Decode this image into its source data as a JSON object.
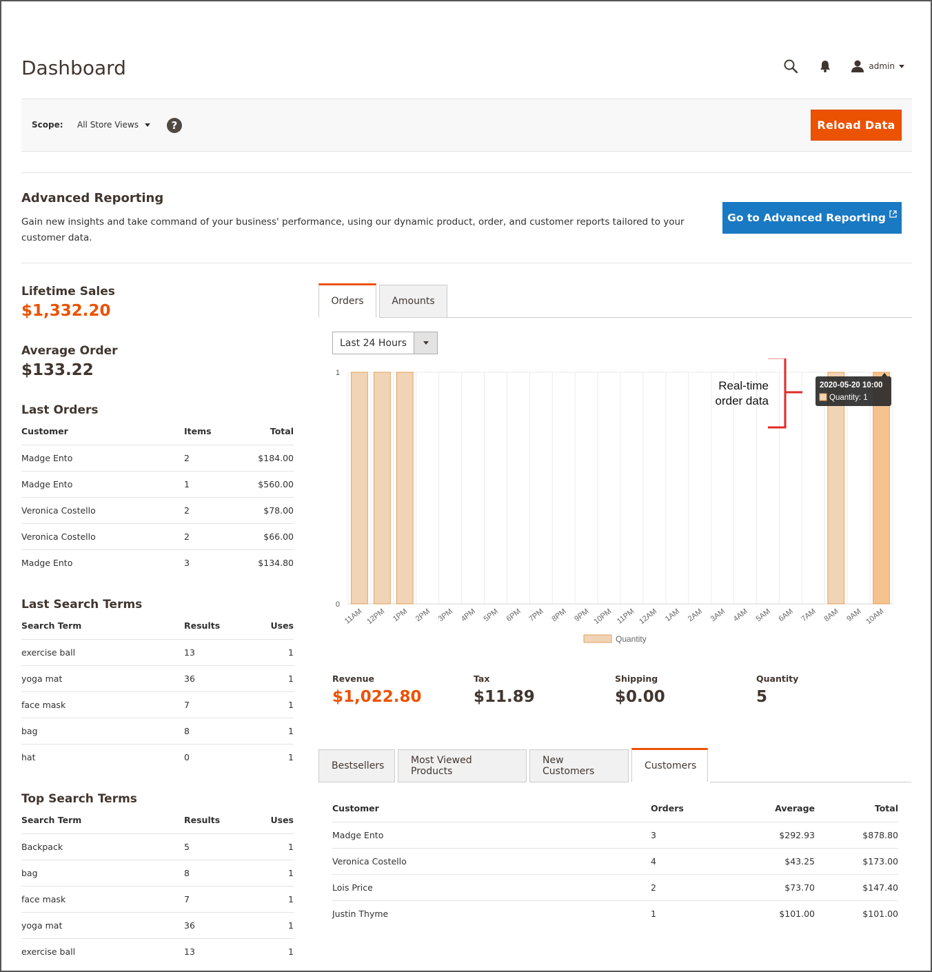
{
  "header": {
    "title": "Dashboard",
    "user": "admin"
  },
  "scope": {
    "label": "Scope:",
    "value": "All Store Views",
    "help": "?",
    "reload_label": "Reload Data"
  },
  "advanced_reporting": {
    "title": "Advanced Reporting",
    "description": "Gain new insights and take command of your business' performance, using our dynamic product, order, and customer reports tailored to your customer data.",
    "button_label": "Go to Advanced Reporting"
  },
  "lifetime_sales": {
    "label": "Lifetime Sales",
    "value": "$1,332.20"
  },
  "average_order": {
    "label": "Average Order",
    "value": "$133.22"
  },
  "last_orders": {
    "title": "Last Orders",
    "columns": [
      "Customer",
      "Items",
      "Total"
    ],
    "rows": [
      [
        "Madge Ento",
        "2",
        "$184.00"
      ],
      [
        "Madge Ento",
        "1",
        "$560.00"
      ],
      [
        "Veronica Costello",
        "2",
        "$78.00"
      ],
      [
        "Veronica Costello",
        "2",
        "$66.00"
      ],
      [
        "Madge Ento",
        "3",
        "$134.80"
      ]
    ]
  },
  "last_search_terms": {
    "title": "Last Search Terms",
    "columns": [
      "Search Term",
      "Results",
      "Uses"
    ],
    "rows": [
      [
        "exercise ball",
        "13",
        "1"
      ],
      [
        "yoga mat",
        "36",
        "1"
      ],
      [
        "face mask",
        "7",
        "1"
      ],
      [
        "bag",
        "8",
        "1"
      ],
      [
        "hat",
        "0",
        "1"
      ]
    ]
  },
  "top_search_terms": {
    "title": "Top Search Terms",
    "columns": [
      "Search Term",
      "Results",
      "Uses"
    ],
    "rows": [
      [
        "Backpack",
        "5",
        "1"
      ],
      [
        "bag",
        "8",
        "1"
      ],
      [
        "face mask",
        "7",
        "1"
      ],
      [
        "yoga mat",
        "36",
        "1"
      ],
      [
        "exercise ball",
        "13",
        "1"
      ]
    ]
  },
  "chart_tabs": [
    "Orders",
    "Amounts"
  ],
  "period": "Last 24 Hours",
  "chart_data": {
    "type": "bar",
    "categories": [
      "11AM",
      "12PM",
      "1PM",
      "2PM",
      "3PM",
      "4PM",
      "5PM",
      "6PM",
      "7PM",
      "8PM",
      "9PM",
      "10PM",
      "11PM",
      "12AM",
      "1AM",
      "2AM",
      "3AM",
      "4AM",
      "5AM",
      "6AM",
      "7AM",
      "8AM",
      "9AM",
      "10AM"
    ],
    "series": [
      {
        "name": "Quantity",
        "values": [
          1,
          1,
          1,
          0,
          0,
          0,
          0,
          0,
          0,
          0,
          0,
          0,
          0,
          0,
          0,
          0,
          0,
          0,
          0,
          0,
          0,
          1,
          0,
          1
        ]
      }
    ],
    "ylim": [
      0,
      1
    ],
    "yticks": [
      "0",
      "1"
    ],
    "legend": "bottom",
    "bar_color": "#f1d4b5",
    "highlight_color": "#f6c38e",
    "bar_stroke": "#e2a05c",
    "annotation": {
      "line1": "Real-time",
      "line2": "order data",
      "color": "#e02b27"
    },
    "tooltip": {
      "title": "2020-05-20 10:00",
      "label": "Quantity: 1"
    }
  },
  "totals": [
    {
      "label": "Revenue",
      "value": "$1,022.80",
      "accent": true
    },
    {
      "label": "Tax",
      "value": "$11.89",
      "accent": false
    },
    {
      "label": "Shipping",
      "value": "$0.00",
      "accent": false
    },
    {
      "label": "Quantity",
      "value": "5",
      "accent": false
    }
  ],
  "bottom_tabs": [
    "Bestsellers",
    "Most Viewed Products",
    "New Customers",
    "Customers"
  ],
  "customers": {
    "columns": [
      "Customer",
      "Orders",
      "Average",
      "Total"
    ],
    "rows": [
      [
        "Madge Ento",
        "3",
        "$292.93",
        "$878.80"
      ],
      [
        "Veronica Costello",
        "4",
        "$43.25",
        "$173.00"
      ],
      [
        "Lois Price",
        "2",
        "$73.70",
        "$147.40"
      ],
      [
        "Justin Thyme",
        "1",
        "$101.00",
        "$101.00"
      ]
    ]
  }
}
